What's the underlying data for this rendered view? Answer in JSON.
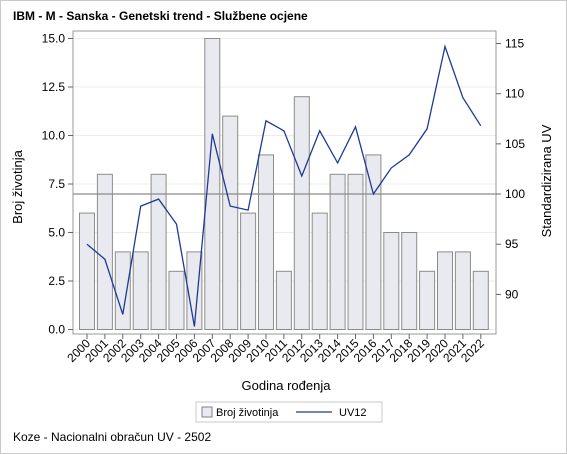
{
  "chart_data": {
    "type": "bar",
    "title": "IBM - M - Sanska - Genetski trend - Službene ocjene",
    "xlabel": "Godina rođenja",
    "ylabel": "Broj životinja",
    "y2label": "Standardizirana UV",
    "categories": [
      "2000",
      "2001",
      "2002",
      "2003",
      "2004",
      "2005",
      "2006",
      "2007",
      "2008",
      "2009",
      "2010",
      "2011",
      "2012",
      "2013",
      "2014",
      "2015",
      "2016",
      "2017",
      "2018",
      "2019",
      "2020",
      "2021",
      "2022"
    ],
    "ylim": [
      0,
      15
    ],
    "yticks": [
      "0.0",
      "2.5",
      "5.0",
      "7.5",
      "10.0",
      "12.5",
      "15.0"
    ],
    "y2lim": [
      86.5,
      115.5
    ],
    "y2ticks": [
      "90",
      "95",
      "100",
      "105",
      "110",
      "115"
    ],
    "reference_line_y2": 100,
    "grid": true,
    "legend_position": "bottom",
    "series": [
      {
        "name": "Broj životinja",
        "type": "bar",
        "color": "#e8eaf0",
        "values": [
          6,
          8,
          4,
          4,
          8,
          3,
          4,
          15,
          11,
          6,
          9,
          3,
          12,
          6,
          8,
          8,
          9,
          5,
          5,
          3,
          4,
          4,
          3
        ]
      },
      {
        "name": "UV12",
        "type": "line",
        "axis": "right",
        "color": "#1f3a93",
        "values": [
          95.0,
          93.5,
          88.0,
          98.8,
          99.5,
          97.0,
          86.8,
          106.0,
          98.8,
          98.4,
          107.3,
          106.3,
          101.8,
          106.3,
          103.1,
          106.7,
          100.0,
          102.6,
          103.9,
          106.5,
          114.7,
          109.6,
          106.8
        ]
      }
    ]
  },
  "footnote": "Koze - Nacionalni obračun UV - 2502"
}
